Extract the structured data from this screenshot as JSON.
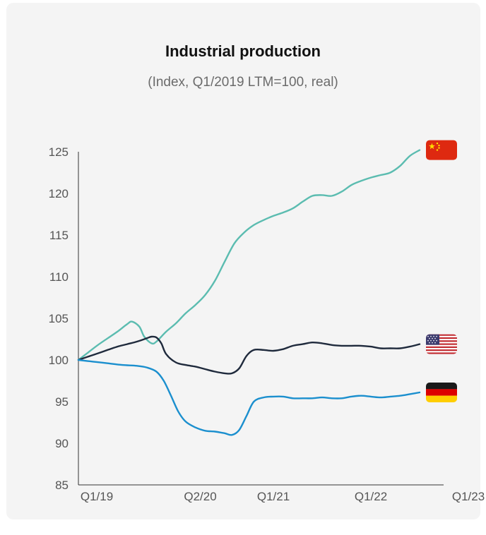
{
  "chart_data": {
    "type": "line",
    "title": "Industrial production",
    "subtitle": "(Index, Q1/2019 LTM=100, real)",
    "xlabel": "",
    "ylabel": "",
    "ylim": [
      85,
      125
    ],
    "yticks": [
      "85",
      "90",
      "95",
      "100",
      "105",
      "110",
      "115",
      "120",
      "125"
    ],
    "xticks": [
      {
        "label": "Q1/19",
        "q": 0
      },
      {
        "label": "Q2/20",
        "q": 5
      },
      {
        "label": "Q1/21",
        "q": 8
      },
      {
        "label": "Q1/22",
        "q": 12
      },
      {
        "label": "Q1/23",
        "q": 16
      }
    ],
    "grid": false,
    "legend": "flags at line ends",
    "series": [
      {
        "id": "china",
        "color": "#5bbcb0",
        "flag": "china-flag",
        "points": [
          [
            0,
            100
          ],
          [
            0.4,
            100.9
          ],
          [
            0.8,
            101.8
          ],
          [
            1.2,
            102.6
          ],
          [
            1.6,
            103.4
          ],
          [
            2,
            104.3
          ],
          [
            2.2,
            104.6
          ],
          [
            2.5,
            104
          ],
          [
            2.7,
            102.8
          ],
          [
            3,
            102
          ],
          [
            3.2,
            102.2
          ],
          [
            3.6,
            103.4
          ],
          [
            4,
            104.4
          ],
          [
            4.4,
            105.6
          ],
          [
            4.8,
            106.6
          ],
          [
            5.2,
            107.8
          ],
          [
            5.6,
            109.5
          ],
          [
            6,
            111.8
          ],
          [
            6.4,
            114
          ],
          [
            6.8,
            115.3
          ],
          [
            7.2,
            116.2
          ],
          [
            7.6,
            116.8
          ],
          [
            8,
            117.3
          ],
          [
            8.4,
            117.7
          ],
          [
            8.8,
            118.2
          ],
          [
            9.2,
            119
          ],
          [
            9.6,
            119.7
          ],
          [
            10,
            119.8
          ],
          [
            10.4,
            119.7
          ],
          [
            10.8,
            120.2
          ],
          [
            11.2,
            121
          ],
          [
            11.6,
            121.5
          ],
          [
            12,
            121.9
          ],
          [
            12.4,
            122.2
          ],
          [
            12.8,
            122.5
          ],
          [
            13.2,
            123.3
          ],
          [
            13.6,
            124.5
          ],
          [
            14,
            125.2
          ]
        ]
      },
      {
        "id": "united-states",
        "color": "#1f2a3c",
        "flag": "us-flag",
        "points": [
          [
            0,
            100
          ],
          [
            0.4,
            100.4
          ],
          [
            0.8,
            100.8
          ],
          [
            1.2,
            101.2
          ],
          [
            1.6,
            101.6
          ],
          [
            2,
            101.9
          ],
          [
            2.4,
            102.2
          ],
          [
            2.8,
            102.6
          ],
          [
            3,
            102.8
          ],
          [
            3.2,
            102.7
          ],
          [
            3.4,
            102
          ],
          [
            3.6,
            100.7
          ],
          [
            4,
            99.7
          ],
          [
            4.4,
            99.4
          ],
          [
            4.8,
            99.2
          ],
          [
            5.2,
            98.9
          ],
          [
            5.6,
            98.6
          ],
          [
            6,
            98.4
          ],
          [
            6.3,
            98.4
          ],
          [
            6.6,
            99
          ],
          [
            6.9,
            100.5
          ],
          [
            7.2,
            101.2
          ],
          [
            7.6,
            101.2
          ],
          [
            8,
            101.1
          ],
          [
            8.4,
            101.3
          ],
          [
            8.8,
            101.7
          ],
          [
            9.2,
            101.9
          ],
          [
            9.6,
            102.1
          ],
          [
            10,
            102
          ],
          [
            10.4,
            101.8
          ],
          [
            10.8,
            101.7
          ],
          [
            11.2,
            101.7
          ],
          [
            11.6,
            101.7
          ],
          [
            12,
            101.6
          ],
          [
            12.4,
            101.4
          ],
          [
            12.8,
            101.4
          ],
          [
            13.2,
            101.4
          ],
          [
            13.6,
            101.6
          ],
          [
            14,
            101.9
          ]
        ]
      },
      {
        "id": "germany",
        "color": "#1b8fce",
        "flag": "germany-flag",
        "points": [
          [
            0,
            100
          ],
          [
            0.6,
            99.8
          ],
          [
            1.2,
            99.6
          ],
          [
            1.8,
            99.4
          ],
          [
            2.4,
            99.3
          ],
          [
            2.8,
            99.1
          ],
          [
            3.2,
            98.6
          ],
          [
            3.5,
            97.5
          ],
          [
            3.8,
            95.7
          ],
          [
            4.1,
            93.8
          ],
          [
            4.4,
            92.6
          ],
          [
            4.8,
            91.9
          ],
          [
            5.2,
            91.5
          ],
          [
            5.6,
            91.4
          ],
          [
            6,
            91.2
          ],
          [
            6.3,
            91
          ],
          [
            6.6,
            91.6
          ],
          [
            6.9,
            93.3
          ],
          [
            7.2,
            95
          ],
          [
            7.6,
            95.5
          ],
          [
            8,
            95.6
          ],
          [
            8.4,
            95.6
          ],
          [
            8.8,
            95.4
          ],
          [
            9.2,
            95.4
          ],
          [
            9.6,
            95.4
          ],
          [
            10,
            95.5
          ],
          [
            10.4,
            95.4
          ],
          [
            10.8,
            95.4
          ],
          [
            11.2,
            95.6
          ],
          [
            11.6,
            95.7
          ],
          [
            12,
            95.6
          ],
          [
            12.4,
            95.5
          ],
          [
            12.8,
            95.6
          ],
          [
            13.2,
            95.7
          ],
          [
            13.6,
            95.9
          ],
          [
            14,
            96.1
          ]
        ]
      }
    ]
  }
}
